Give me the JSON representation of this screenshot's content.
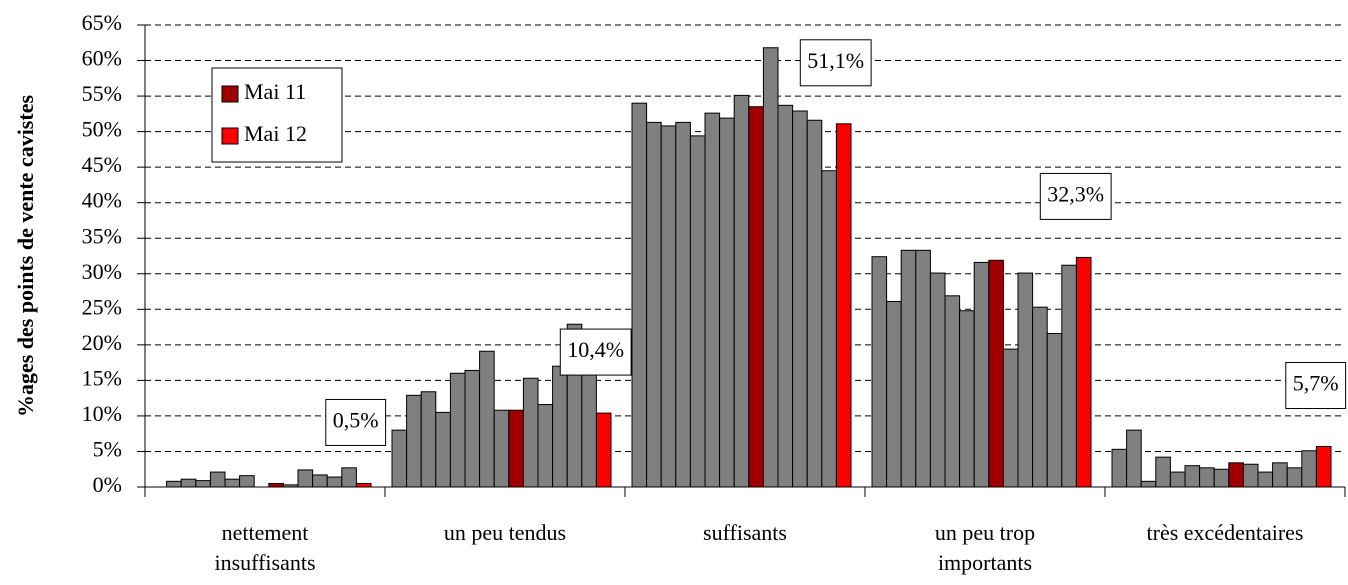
{
  "chart_data": {
    "type": "bar",
    "y_label": "%ages des points de vente cavistes",
    "categories": [
      "nettement insuffisants",
      "un peu tendus",
      "suffisants",
      "un peu trop importants",
      "très excédentaires"
    ],
    "series": [
      {
        "color": "#808080",
        "values": [
          0,
          8.0,
          54.0,
          32.4,
          5.3
        ]
      },
      {
        "color": "#808080",
        "values": [
          0.8,
          12.9,
          51.3,
          26.1,
          8.0
        ]
      },
      {
        "color": "#808080",
        "values": [
          1.1,
          13.4,
          50.8,
          33.3,
          0.8
        ]
      },
      {
        "color": "#808080",
        "values": [
          0.9,
          10.5,
          51.3,
          33.3,
          4.2
        ]
      },
      {
        "color": "#808080",
        "values": [
          2.1,
          16.0,
          49.4,
          30.1,
          2.1
        ]
      },
      {
        "color": "#808080",
        "values": [
          1.1,
          16.4,
          52.6,
          26.9,
          3.0
        ]
      },
      {
        "color": "#808080",
        "values": [
          1.6,
          19.1,
          51.9,
          24.8,
          2.7
        ]
      },
      {
        "color": "#808080",
        "values": [
          0,
          10.8,
          55.1,
          31.6,
          2.5
        ]
      },
      {
        "name": "Mai 11",
        "color": "#a00000",
        "values": [
          0.5,
          10.8,
          53.5,
          31.9,
          3.4
        ]
      },
      {
        "color": "#808080",
        "values": [
          0.3,
          15.3,
          61.8,
          19.4,
          3.2
        ]
      },
      {
        "color": "#808080",
        "values": [
          2.4,
          11.6,
          53.7,
          30.1,
          2.1
        ]
      },
      {
        "color": "#808080",
        "values": [
          1.7,
          17.0,
          52.9,
          25.3,
          3.4
        ]
      },
      {
        "color": "#808080",
        "values": [
          1.4,
          22.9,
          51.6,
          21.6,
          2.7
        ]
      },
      {
        "color": "#808080",
        "values": [
          2.7,
          16.4,
          44.5,
          31.2,
          5.1
        ]
      },
      {
        "name": "Mai 12",
        "color": "#ff0000",
        "values": [
          0.5,
          10.4,
          51.1,
          32.3,
          5.7
        ],
        "value_labels": [
          "0,5%",
          "10,4%",
          "51,1%",
          "32,3%",
          "5,7%"
        ]
      }
    ],
    "ylim": [
      0,
      65
    ],
    "yticks": [
      {
        "value": 0,
        "label": "0%"
      },
      {
        "value": 5,
        "label": "5%"
      },
      {
        "value": 10,
        "label": "10%"
      },
      {
        "value": 15,
        "label": "15%"
      },
      {
        "value": 20,
        "label": "20%"
      },
      {
        "value": 25,
        "label": "25%"
      },
      {
        "value": 30,
        "label": "30%"
      },
      {
        "value": 35,
        "label": "35%"
      },
      {
        "value": 40,
        "label": "40%"
      },
      {
        "value": 45,
        "label": "45%"
      },
      {
        "value": 50,
        "label": "50%"
      },
      {
        "value": 55,
        "label": "55%"
      },
      {
        "value": 60,
        "label": "60%"
      },
      {
        "value": 65,
        "label": "65%"
      }
    ],
    "grid": true,
    "legend": "upper left"
  }
}
